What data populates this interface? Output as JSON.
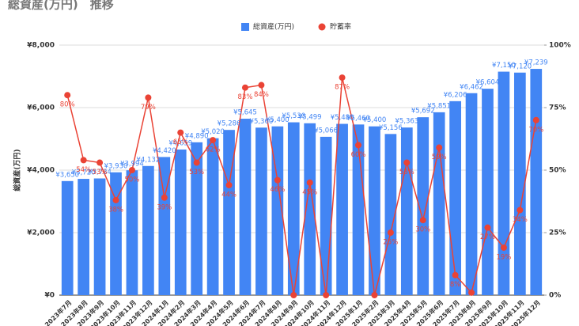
{
  "chart_data": {
    "type": "bar-line",
    "title": "総資産(万円)　推移",
    "y_label": "総資産(万円)",
    "legend_position": "top",
    "grid": true,
    "categories": [
      "2023年7月",
      "2023年8月",
      "2023年9月",
      "2023年10月",
      "2023年11月",
      "2023年12月",
      "2024年1月",
      "2024年2月",
      "2024年3月",
      "2024年4月",
      "2024年5月",
      "2024年6月",
      "2024年7月",
      "2024年8月",
      "2024年9月",
      "2024年10月",
      "2024年11月",
      "2024年12月",
      "2025年1月",
      "2025年2月",
      "2025年3月",
      "2025年4月",
      "2025年5月",
      "2025年6月",
      "2025年7月",
      "2025年8月",
      "2025年9月",
      "2025年10月",
      "2025年11月",
      "2025年12月"
    ],
    "series": [
      {
        "name": "総資産(万円)",
        "color": "#4285f4",
        "axis": "y",
        "values": [
          3650,
          3720,
          3734,
          3930,
          3994,
          4132,
          4420,
          4659,
          4890,
          5020,
          5286,
          5645,
          5360,
          5400,
          5530,
          5499,
          5066,
          5480,
          5460,
          5400,
          5156,
          5363,
          5692,
          5851,
          6206,
          6462,
          6604,
          7150,
          7120,
          7239
        ],
        "value_labels": [
          "¥3,650",
          "¥3,720",
          "¥3,734",
          "¥3,930",
          "¥3,994",
          "¥4,132",
          "¥4,420",
          "¥4,659",
          "¥4,890",
          "¥5,020",
          "¥5,286",
          "¥5,645",
          "¥5,360",
          "¥5,400",
          "¥5,530",
          "¥5,499",
          "¥5,066",
          "¥5,480",
          "¥5,460",
          "¥5,400",
          "¥5,156",
          "¥5,363",
          "¥5,692",
          "¥5,851",
          "¥6,206",
          "¥6,462",
          "¥6,604",
          "¥7,150",
          "¥7,120",
          "¥7,239"
        ]
      },
      {
        "name": "貯蓄率",
        "color": "#ea4335",
        "axis": "y2",
        "values": [
          80,
          54,
          53,
          38,
          50,
          79,
          39,
          65,
          53,
          62,
          44,
          83,
          84,
          46,
          0,
          45,
          0,
          87,
          60,
          0,
          25,
          53,
          30,
          59,
          8,
          1,
          27,
          19,
          34,
          70
        ],
        "value_labels": [
          "80%",
          "54%",
          "53%",
          "38%",
          "50%",
          "79%",
          "39%",
          "65%",
          "53%",
          "62%",
          "44%",
          "83%",
          "84%",
          "46%",
          null,
          "45%",
          null,
          "87%",
          "60%",
          null,
          "25%",
          "53%",
          "30%",
          "59%",
          "8%",
          null,
          "27%",
          "19%",
          "34%",
          "70%"
        ]
      }
    ],
    "ylim": [
      0,
      8000
    ],
    "yticks": [
      {
        "value": 0,
        "label": "¥0"
      },
      {
        "value": 2000,
        "label": "¥2,000"
      },
      {
        "value": 4000,
        "label": "¥4,000"
      },
      {
        "value": 6000,
        "label": "¥6,000"
      },
      {
        "value": 8000,
        "label": "¥8,000"
      }
    ],
    "y2lim": [
      0,
      100
    ],
    "y2ticks": [
      {
        "value": 0,
        "label": "0%"
      },
      {
        "value": 25,
        "label": "25%"
      },
      {
        "value": 50,
        "label": "50%"
      },
      {
        "value": 75,
        "label": "75%"
      },
      {
        "value": 100,
        "label": "100%"
      }
    ]
  }
}
